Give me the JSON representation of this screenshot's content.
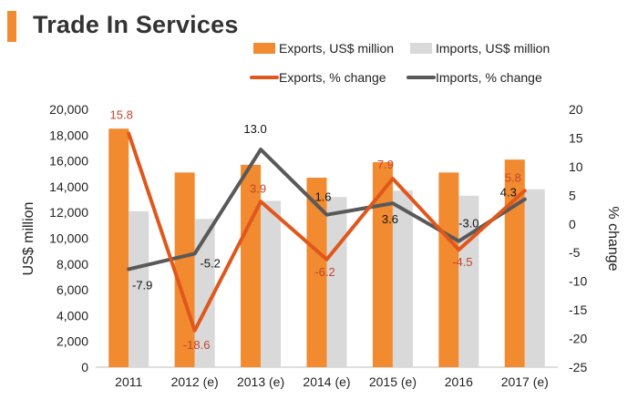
{
  "chart_data": {
    "type": "bar",
    "title": "Trade In Services",
    "categories": [
      "2011",
      "2012 (e)",
      "2013 (e)",
      "2014 (e)",
      "2015 (e)",
      "2016",
      "2017 (e)"
    ],
    "ylabel": "US$ million",
    "ylim": [
      0,
      20000
    ],
    "yticks": [
      "0",
      "2,000",
      "4,000",
      "6,000",
      "8,000",
      "10,000",
      "12,000",
      "14,000",
      "16,000",
      "18,000",
      "20,000"
    ],
    "y2label": "% change",
    "y2lim": [
      -25,
      20
    ],
    "y2ticks": [
      "-25",
      "-20",
      "-15",
      "-10",
      "-5",
      "0",
      "5",
      "10",
      "15",
      "20"
    ],
    "legend_position": "top-right",
    "series": [
      {
        "name": "Exports, US$ million",
        "type": "bar",
        "axis": "left",
        "color": "#f28a30",
        "values": [
          18500,
          15100,
          15700,
          14700,
          15900,
          15100,
          16100
        ]
      },
      {
        "name": "Imports, US$ million",
        "type": "bar",
        "axis": "left",
        "color": "#d9d9d9",
        "values": [
          12100,
          11500,
          12900,
          13200,
          13700,
          13300,
          13800
        ]
      },
      {
        "name": "Exports, % change",
        "type": "line",
        "axis": "right",
        "color": "#e0571b",
        "values": [
          15.8,
          -18.6,
          3.9,
          -6.2,
          7.9,
          -4.5,
          5.8
        ],
        "labels": [
          "15.8",
          "-18.6",
          "3.9",
          "-6.2",
          "7.9",
          "-4.5",
          "5.8"
        ]
      },
      {
        "name": "Imports, % change",
        "type": "line",
        "axis": "right",
        "color": "#595959",
        "values": [
          -7.9,
          -5.2,
          13.0,
          1.6,
          3.6,
          -3.0,
          4.3
        ],
        "labels": [
          "-7.9",
          "-5.2",
          "13.0",
          "1.6",
          "3.6",
          "-3.0",
          "4.3"
        ]
      }
    ]
  }
}
